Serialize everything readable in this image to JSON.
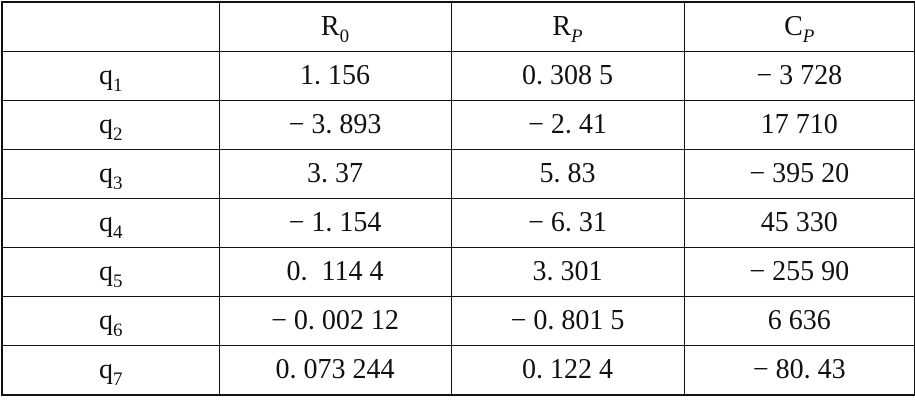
{
  "table": {
    "header": [
      {
        "main": "R",
        "sub": "0"
      },
      {
        "main": "R",
        "sub": "P"
      },
      {
        "main": "C",
        "sub": "P"
      }
    ],
    "rows": [
      {
        "label": {
          "main": "q",
          "sub": "1"
        },
        "cells": [
          "1. 156",
          "0. 308 5",
          "− 3 728"
        ]
      },
      {
        "label": {
          "main": "q",
          "sub": "2"
        },
        "cells": [
          "− 3. 893",
          "− 2. 41",
          "17 710"
        ]
      },
      {
        "label": {
          "main": "q",
          "sub": "3"
        },
        "cells": [
          "3. 37",
          "5. 83",
          "− 395 20"
        ]
      },
      {
        "label": {
          "main": "q",
          "sub": "4"
        },
        "cells": [
          "− 1. 154",
          "− 6. 31",
          "45 330"
        ]
      },
      {
        "label": {
          "main": "q",
          "sub": "5"
        },
        "cells": [
          "0.  114 4",
          "3. 301",
          "− 255 90"
        ]
      },
      {
        "label": {
          "main": "q",
          "sub": "6"
        },
        "cells": [
          "− 0. 002 12",
          "− 0. 801 5",
          "6 636"
        ]
      },
      {
        "label": {
          "main": "q",
          "sub": "7"
        },
        "cells": [
          "0. 073 244",
          "0. 122 4",
          "− 80. 43"
        ]
      }
    ]
  }
}
